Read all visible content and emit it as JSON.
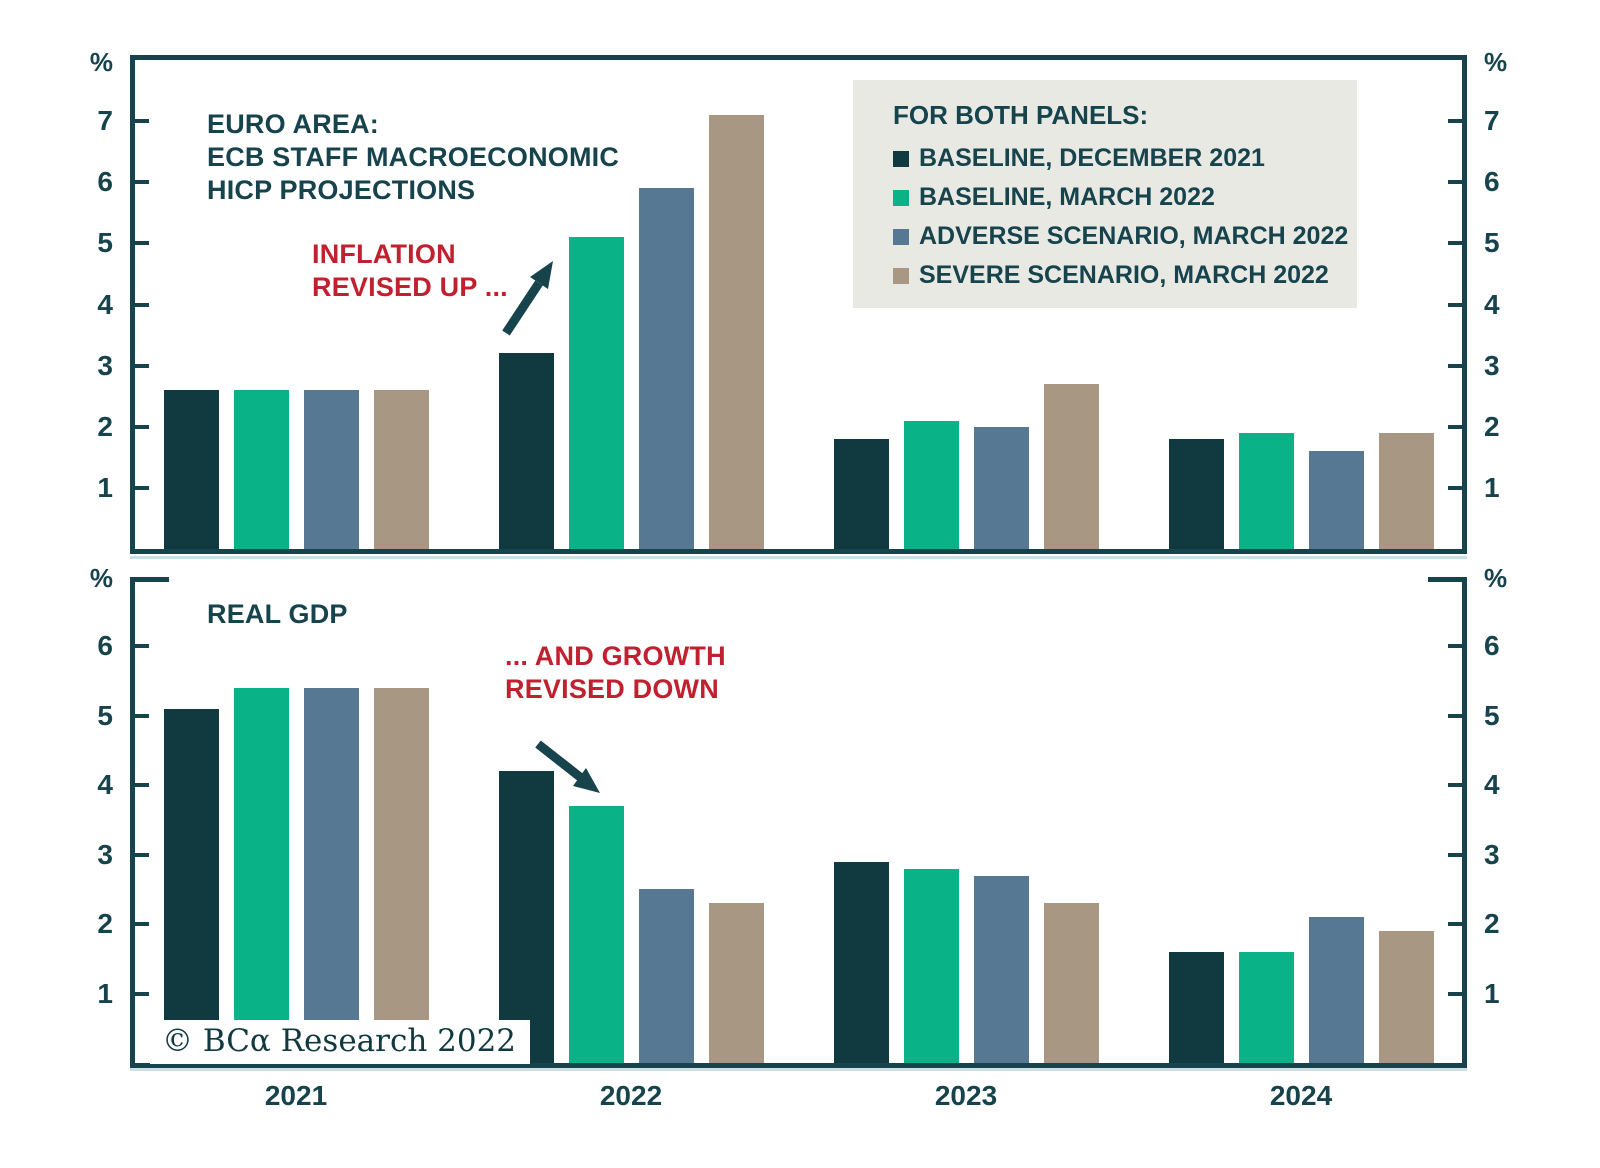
{
  "figure": {
    "unit_label": "%",
    "background": "#ffffff",
    "axis_color": "#17434d",
    "text_color": "#17434d",
    "annotation_color": "#c1202f",
    "legend_background": "#e9e9e4"
  },
  "legend": {
    "title": "FOR BOTH PANELS:",
    "position": "top-right",
    "items": [
      {
        "label": "BASELINE, DECEMBER 2021",
        "color": "#113940"
      },
      {
        "label": "BASELINE, MARCH 2022",
        "color": "#09b287"
      },
      {
        "label": "ADVERSE SCENARIO, MARCH 2022",
        "color": "#567892"
      },
      {
        "label": "SEVERE SCENARIO, MARCH 2022",
        "color": "#a89783"
      }
    ]
  },
  "copyright": "© BCα Research 2022",
  "x_axis": {
    "categories": [
      "2021",
      "2022",
      "2023",
      "2024"
    ]
  },
  "chart_data": [
    {
      "type": "bar",
      "panel": "hicp",
      "title_lines": [
        "EURO AREA:",
        "ECB STAFF MACROECONOMIC",
        "HICP PROJECTIONS"
      ],
      "annotation_lines": [
        "INFLATION",
        "REVISED UP ..."
      ],
      "ylabel": "%",
      "grid": false,
      "categories": [
        "2021",
        "2022",
        "2023",
        "2024"
      ],
      "series": [
        {
          "name": "BASELINE, DECEMBER 2021",
          "color": "#113940",
          "values": [
            2.6,
            3.2,
            1.8,
            1.8
          ]
        },
        {
          "name": "BASELINE, MARCH 2022",
          "color": "#09b287",
          "values": [
            2.6,
            5.1,
            2.1,
            1.9
          ]
        },
        {
          "name": "ADVERSE SCENARIO, MARCH 2022",
          "color": "#567892",
          "values": [
            2.6,
            5.9,
            2.0,
            1.6
          ]
        },
        {
          "name": "SEVERE SCENARIO, MARCH 2022",
          "color": "#a89783",
          "values": [
            2.6,
            7.1,
            2.7,
            1.9
          ]
        }
      ],
      "ylim": [
        0,
        8
      ],
      "yticks": [
        1,
        2,
        3,
        4,
        5,
        6,
        7
      ]
    },
    {
      "type": "bar",
      "panel": "gdp",
      "title_lines": [
        "REAL GDP"
      ],
      "annotation_lines": [
        "... AND GROWTH",
        "REVISED DOWN"
      ],
      "ylabel": "%",
      "grid": false,
      "categories": [
        "2021",
        "2022",
        "2023",
        "2024"
      ],
      "series": [
        {
          "name": "BASELINE, DECEMBER 2021",
          "color": "#113940",
          "values": [
            5.1,
            4.2,
            2.9,
            1.6
          ]
        },
        {
          "name": "BASELINE, MARCH 2022",
          "color": "#09b287",
          "values": [
            5.4,
            3.7,
            2.8,
            1.6
          ]
        },
        {
          "name": "ADVERSE SCENARIO, MARCH 2022",
          "color": "#567892",
          "values": [
            5.4,
            2.5,
            2.7,
            2.1
          ]
        },
        {
          "name": "SEVERE SCENARIO, MARCH 2022",
          "color": "#a89783",
          "values": [
            5.4,
            2.3,
            2.3,
            1.9
          ]
        }
      ],
      "ylim": [
        0,
        7
      ],
      "yticks": [
        1,
        2,
        3,
        4,
        5,
        6
      ]
    }
  ]
}
